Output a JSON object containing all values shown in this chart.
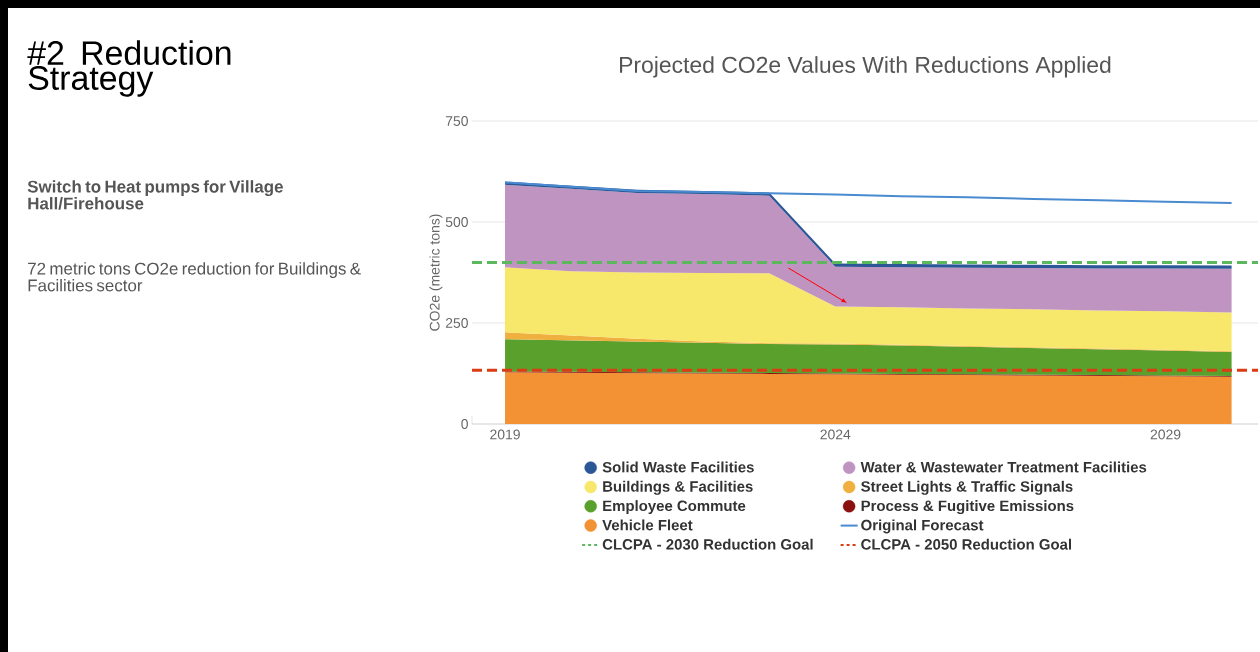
{
  "chart_data": {
    "type": "area",
    "stacked": true,
    "title": "Projected CO2e Values With Reductions Applied",
    "ylabel": "CO2e (metric tons)",
    "annotations": [
      "#2 Reduction Strategy",
      "Switch to Heat pumps for Village Hall/Firehouse",
      "72 metric tons CO2e reduction for Buildings & Facilities sector"
    ],
    "categories": [
      "2019",
      null,
      null,
      null,
      null,
      "2024",
      null,
      null,
      null,
      null,
      "2029",
      null
    ],
    "series": [
      {
        "name": "Vehicle Fleet",
        "color": "#f39234",
        "values": [
          128,
          127,
          126,
          125,
          124,
          123,
          122,
          121,
          120,
          119,
          118,
          117
        ]
      },
      {
        "name": "Process & Fugitive Emissions",
        "color": "#8b1010",
        "values": [
          2,
          2,
          2,
          2,
          2,
          2,
          2,
          2,
          2,
          2,
          2,
          2
        ]
      },
      {
        "name": "Employee Commute",
        "color": "#5aa02c",
        "values": [
          80,
          78,
          76,
          74,
          72,
          72,
          70,
          68,
          66,
          64,
          62,
          59
        ]
      },
      {
        "name": "Street Lights & Traffic Signals",
        "color": "#f0b040",
        "values": [
          17,
          12,
          7,
          3,
          2,
          2,
          2,
          2,
          2,
          2,
          2,
          2
        ]
      },
      {
        "name": "Buildings & Facilities",
        "color": "#f7e76b",
        "values": [
          161,
          159,
          164,
          170,
          173,
          92,
          93,
          93,
          94,
          94,
          95,
          96
        ]
      },
      {
        "name": "Water & Wastewater Treatment Facilities",
        "color": "#bf94c0",
        "values": [
          204,
          204,
          197,
          195,
          192,
          98,
          99,
          101,
          102,
          104,
          106,
          108
        ]
      },
      {
        "name": "Solid Waste Facilities",
        "color": "#2b5797",
        "values": [
          8,
          8,
          8,
          8,
          8,
          8,
          8,
          8,
          8,
          8,
          8,
          8
        ]
      },
      {
        "name": "Original Forecast",
        "type": "line",
        "color": "#4a8ad0",
        "values": [
          598,
          587,
          577,
          574,
          571,
          568,
          564,
          561,
          557,
          554,
          550,
          547
        ]
      }
    ],
    "ref_lines": [
      {
        "axis": "y",
        "value": 400,
        "label": "CLCPA - 2030 Reduction Goal",
        "color": "#5cb85c",
        "line_style": "dashed"
      },
      {
        "axis": "y",
        "value": 133,
        "label": "CLCPA - 2050 Reduction Goal",
        "color": "#dc3c14",
        "line_style": "dashed"
      }
    ],
    "ylim": [
      0,
      750
    ],
    "yticks": [
      0,
      250,
      500,
      750
    ],
    "grid": "y",
    "legend": "bottom"
  }
}
